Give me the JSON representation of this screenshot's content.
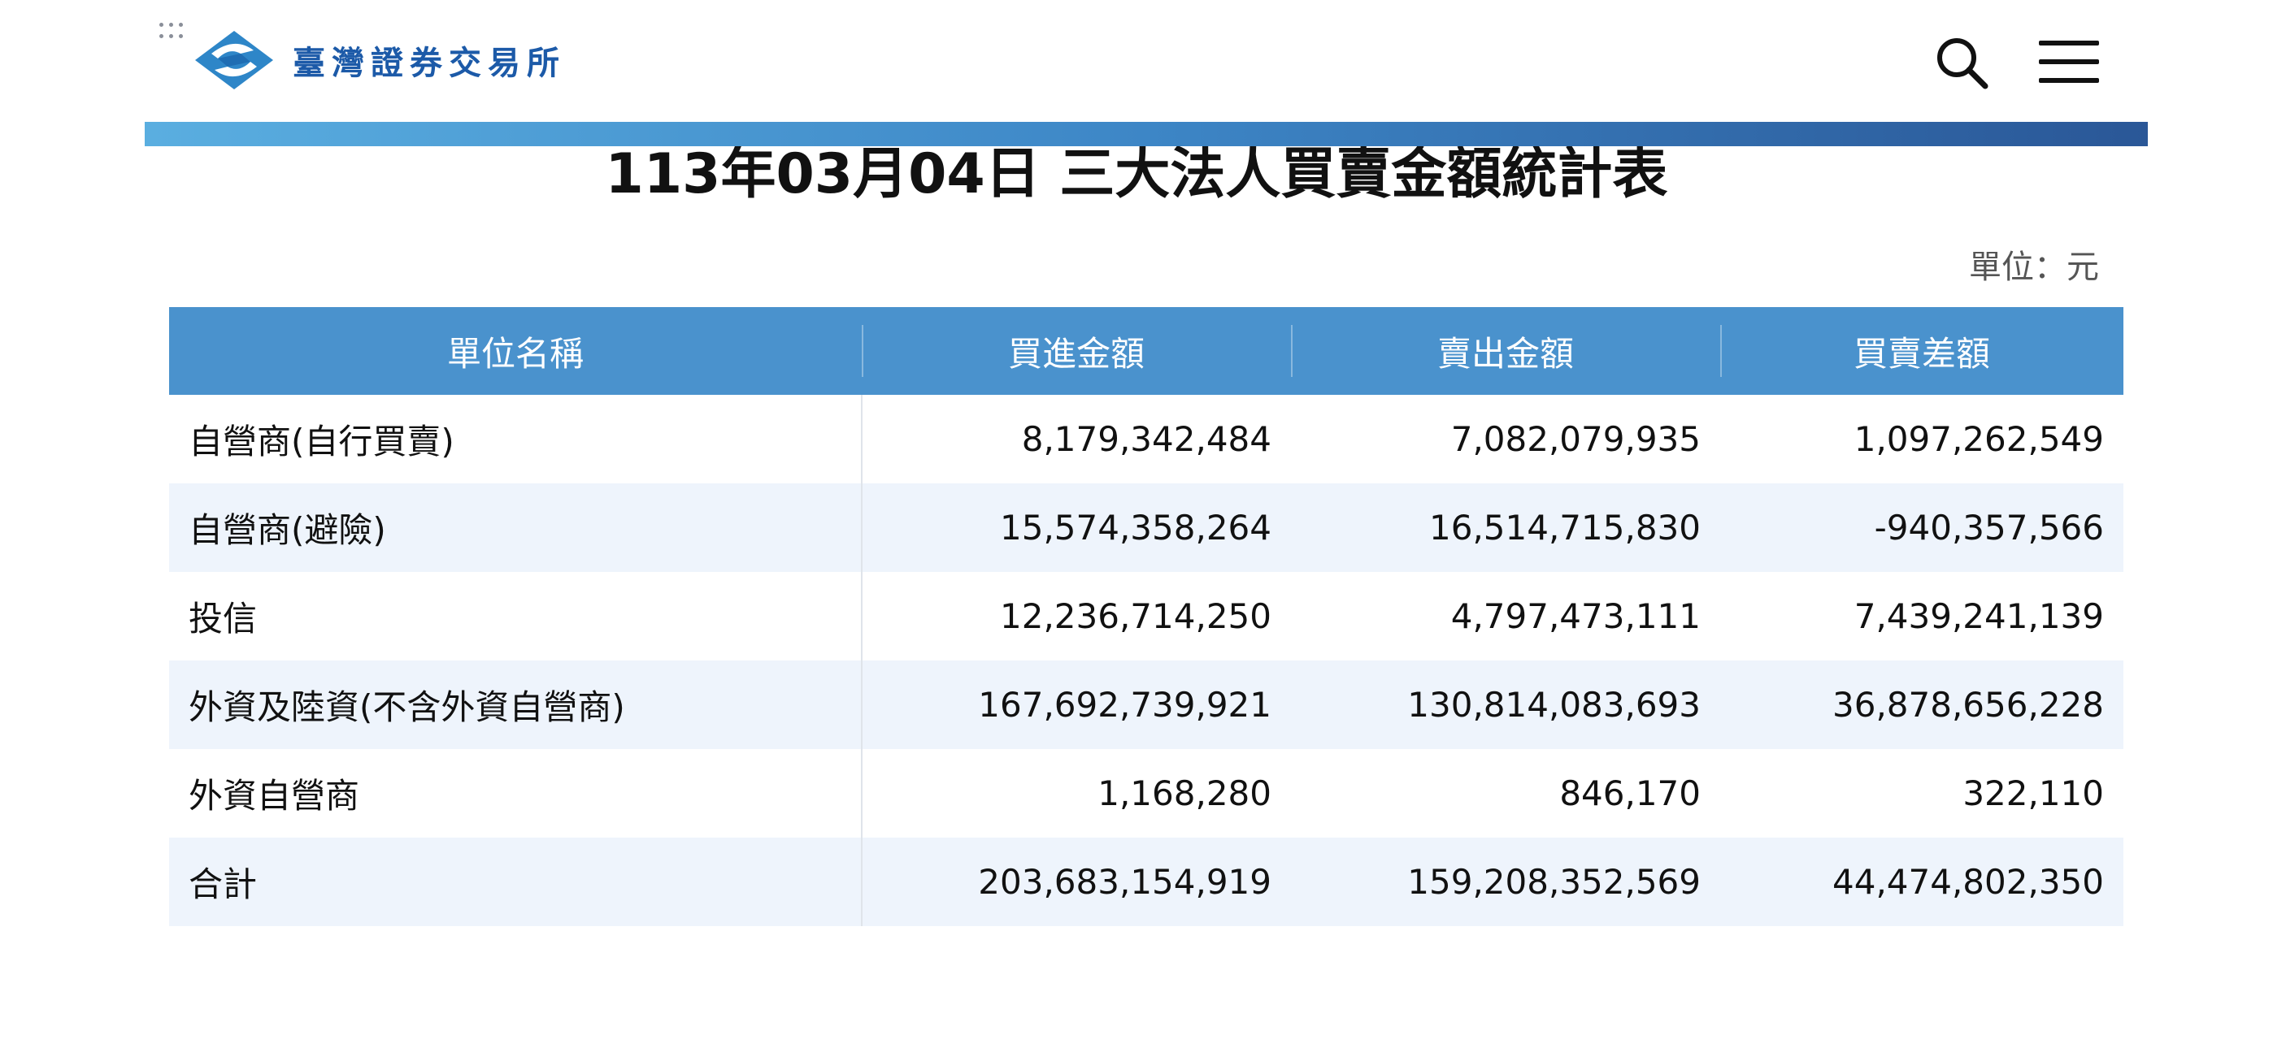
{
  "header": {
    "logo_text": "臺灣證券交易所",
    "icons": [
      "grip-dots-icon",
      "twse-logo-icon",
      "search-icon",
      "hamburger-menu-icon"
    ],
    "colors": {
      "logo": "#1c5aa8",
      "bar_start": "#5aaee0",
      "bar_end": "#2a5797"
    }
  },
  "report": {
    "title": "113年03月04日 三大法人買賣金額統計表",
    "unit": "單位：元"
  },
  "table": {
    "columns": [
      "單位名稱",
      "買進金額",
      "賣出金額",
      "買賣差額"
    ],
    "rows": [
      [
        "自營商(自行買賣)",
        "8,179,342,484",
        "7,082,079,935",
        "1,097,262,549"
      ],
      [
        "自營商(避險)",
        "15,574,358,264",
        "16,514,715,830",
        "-940,357,566"
      ],
      [
        "投信",
        "12,236,714,250",
        "4,797,473,111",
        "7,439,241,139"
      ],
      [
        "外資及陸資(不含外資自營商)",
        "167,692,739,921",
        "130,814,083,693",
        "36,878,656,228"
      ],
      [
        "外資自營商",
        "1,168,280",
        "846,170",
        "322,110"
      ],
      [
        "合計",
        "203,683,154,919",
        "159,208,352,569",
        "44,474,802,350"
      ]
    ],
    "colors": {
      "header_bg": "#4a92cd",
      "stripe": "#eef4fc"
    }
  }
}
